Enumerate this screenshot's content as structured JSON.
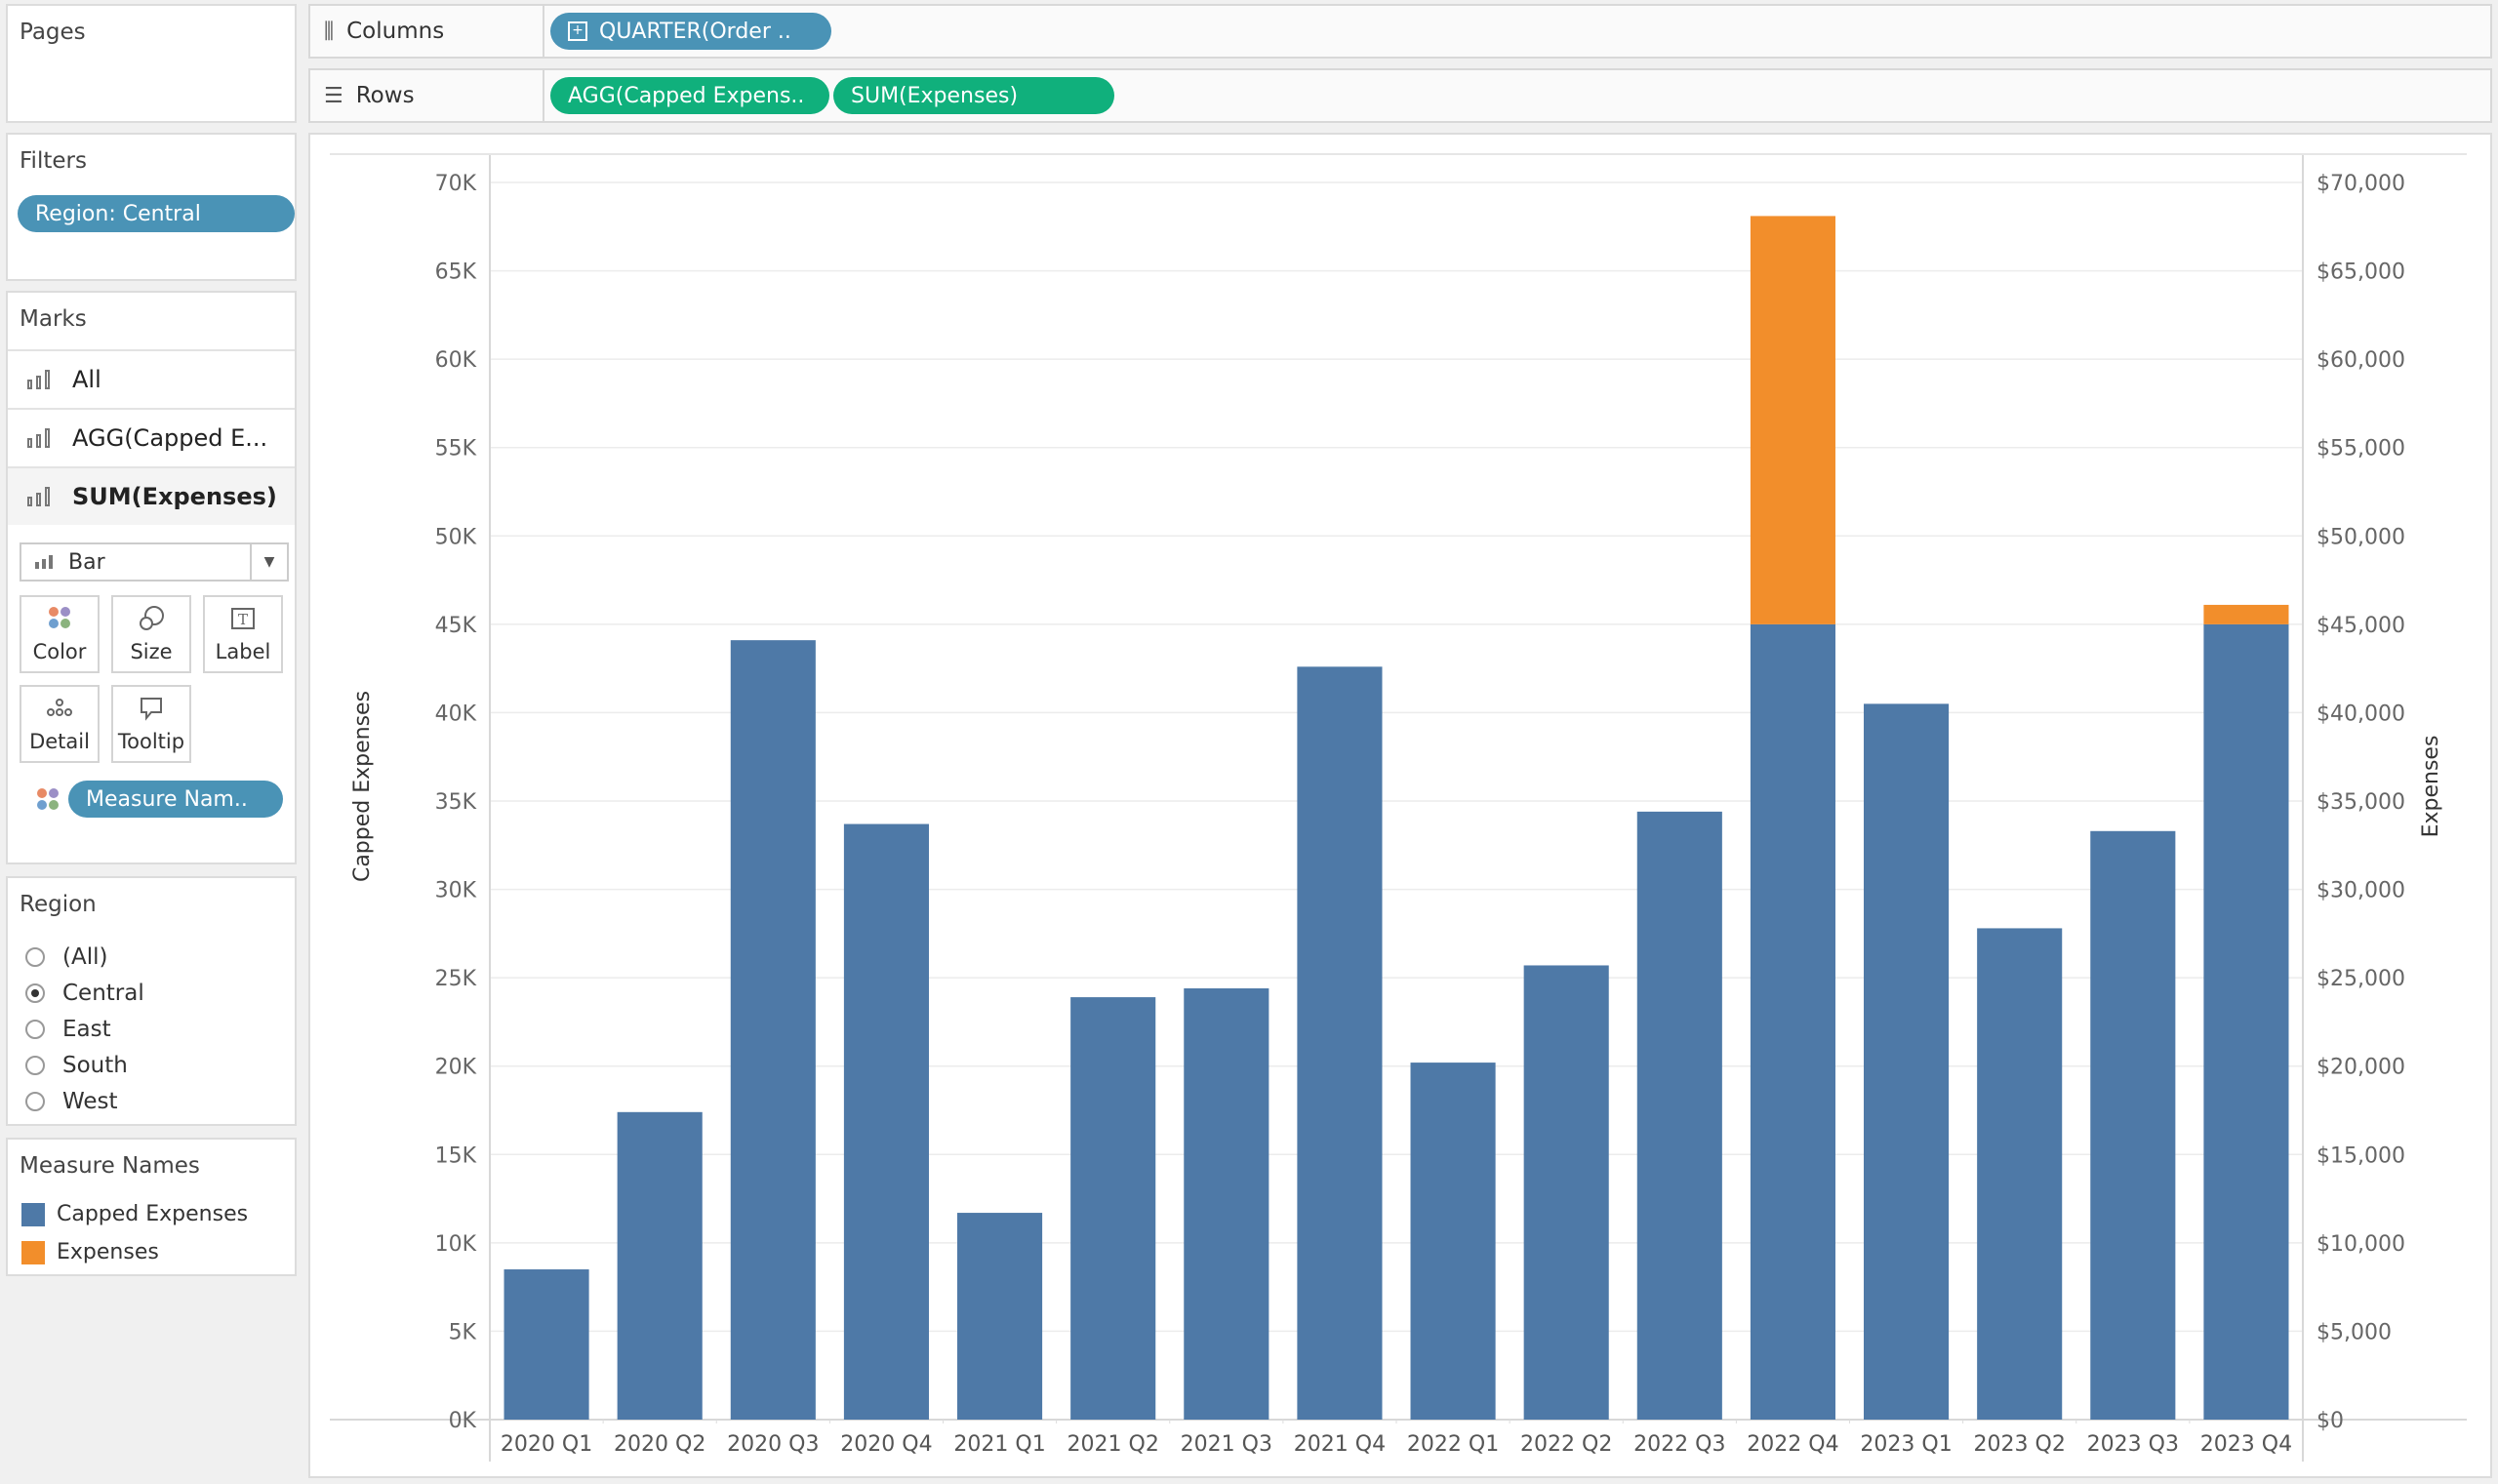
{
  "pages": {
    "title": "Pages"
  },
  "columns": {
    "label": "Columns",
    "pill": "QUARTER(Order .."
  },
  "rows": {
    "label": "Rows",
    "pill1": "AGG(Capped Expens..",
    "pill2": "SUM(Expenses)"
  },
  "filters": {
    "title": "Filters",
    "pill": "Region: Central"
  },
  "marks": {
    "title": "Marks",
    "items": [
      {
        "label": "All",
        "icon": "bar-chart-icon"
      },
      {
        "label": "AGG(Capped E...",
        "icon": "bar-chart-icon"
      },
      {
        "label": "SUM(Expenses)",
        "icon": "bar-chart-icon"
      }
    ],
    "mark_type": "Bar",
    "buttons": [
      "Color",
      "Size",
      "Label",
      "Detail",
      "Tooltip"
    ],
    "color_pill": "Measure Nam.."
  },
  "region": {
    "title": "Region",
    "options": [
      "(All)",
      "Central",
      "East",
      "South",
      "West"
    ],
    "selected": "Central"
  },
  "legend": {
    "title": "Measure Names",
    "items": [
      {
        "label": "Capped Expenses",
        "color": "#4e79a7"
      },
      {
        "label": "Expenses",
        "color": "#f28e2b"
      }
    ]
  },
  "chart_data": {
    "type": "bar",
    "stacked": true,
    "categories": [
      "2020 Q1",
      "2020 Q2",
      "2020 Q3",
      "2020 Q4",
      "2021 Q1",
      "2021 Q2",
      "2021 Q3",
      "2021 Q4",
      "2022 Q1",
      "2022 Q2",
      "2022 Q3",
      "2022 Q4",
      "2023 Q1",
      "2023 Q2",
      "2023 Q3",
      "2023 Q4"
    ],
    "series": [
      {
        "name": "Capped Expenses",
        "color": "#4e79a7",
        "values": [
          8500,
          17400,
          44100,
          33700,
          11700,
          23900,
          24400,
          42600,
          20200,
          25700,
          34400,
          45000,
          40500,
          27800,
          33300,
          45000
        ]
      },
      {
        "name": "Expenses",
        "color": "#f28e2b",
        "values": [
          0,
          0,
          0,
          0,
          0,
          0,
          0,
          0,
          0,
          0,
          0,
          23100,
          0,
          0,
          0,
          1100
        ]
      }
    ],
    "ylabel": "Capped Expenses",
    "y2label": "Expenses",
    "ylim": [
      0,
      70000
    ],
    "yticks": [
      "0K",
      "5K",
      "10K",
      "15K",
      "20K",
      "25K",
      "30K",
      "35K",
      "40K",
      "45K",
      "50K",
      "55K",
      "60K",
      "65K",
      "70K"
    ],
    "y2ticks": [
      "$0",
      "$5,000",
      "$10,000",
      "$15,000",
      "$20,000",
      "$25,000",
      "$30,000",
      "$35,000",
      "$40,000",
      "$45,000",
      "$50,000",
      "$55,000",
      "$60,000",
      "$65,000",
      "$70,000"
    ],
    "grid": true
  }
}
